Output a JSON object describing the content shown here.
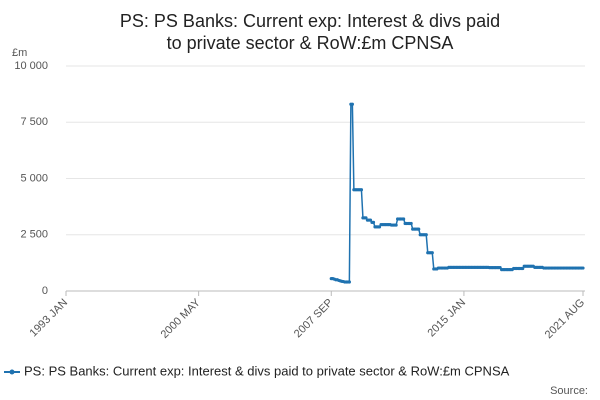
{
  "chart_data": {
    "type": "line",
    "title": "PS: PS Banks: Current exp: Interest & divs paid to private sector & RoW:£m CPNSA",
    "y_unit": "£m",
    "source": "Source:",
    "x": [
      "2007 SEP",
      "2007 OCT",
      "2007 NOV",
      "2007 DEC",
      "2008 JAN",
      "2008 FEB",
      "2008 MAR",
      "2008 APR",
      "2008 MAY",
      "2008 JUN",
      "2008 JUL",
      "2008 AUG",
      "2008 SEP",
      "2008 OCT",
      "2008 NOV",
      "2008 DEC",
      "2009 JAN",
      "2009 FEB",
      "2009 MAR",
      "2009 APR",
      "2009 MAY",
      "2009 JUN",
      "2009 JUL",
      "2009 AUG",
      "2009 SEP",
      "2009 OCT",
      "2009 NOV",
      "2009 DEC",
      "2010 JAN",
      "2010 FEB",
      "2010 MAR",
      "2010 APR",
      "2010 MAY",
      "2010 JUN",
      "2010 JUL",
      "2010 AUG",
      "2010 SEP",
      "2010 OCT",
      "2010 NOV",
      "2010 DEC",
      "2011 JAN",
      "2011 FEB",
      "2011 MAR",
      "2011 APR",
      "2011 MAY",
      "2011 JUN",
      "2011 JUL",
      "2011 AUG",
      "2011 SEP",
      "2011 OCT",
      "2011 NOV",
      "2011 DEC",
      "2012 JAN",
      "2012 FEB",
      "2012 MAR",
      "2012 APR",
      "2012 MAY",
      "2012 JUN",
      "2012 JUL",
      "2012 AUG",
      "2012 SEP",
      "2012 OCT",
      "2012 NOV",
      "2012 DEC",
      "2013 JAN",
      "2013 FEB",
      "2013 MAR",
      "2013 APR",
      "2013 MAY",
      "2013 JUN",
      "2013 JUL",
      "2013 AUG",
      "2013 SEP",
      "2013 OCT",
      "2013 NOV",
      "2013 DEC",
      "2014 JAN",
      "2014 FEB",
      "2014 MAR",
      "2014 APR",
      "2014 MAY",
      "2014 JUN",
      "2014 JUL",
      "2014 AUG",
      "2014 SEP",
      "2014 OCT",
      "2014 NOV",
      "2014 DEC",
      "2015 JAN",
      "2015 FEB",
      "2015 MAR",
      "2015 APR",
      "2015 MAY",
      "2015 JUN",
      "2015 JUL",
      "2015 AUG",
      "2015 SEP",
      "2015 OCT",
      "2015 NOV",
      "2015 DEC",
      "2016 JAN",
      "2016 FEB",
      "2016 MAR",
      "2016 APR",
      "2016 MAY",
      "2016 JUN",
      "2016 JUL",
      "2016 AUG",
      "2016 SEP",
      "2016 OCT",
      "2016 NOV",
      "2016 DEC",
      "2017 JAN",
      "2017 FEB",
      "2017 MAR",
      "2017 APR",
      "2017 MAY",
      "2017 JUN",
      "2017 JUL",
      "2017 AUG",
      "2017 SEP",
      "2017 OCT",
      "2017 NOV",
      "2017 DEC",
      "2018 JAN",
      "2018 FEB",
      "2018 MAR",
      "2018 APR",
      "2018 MAY",
      "2018 JUN",
      "2018 JUL",
      "2018 AUG",
      "2018 SEP",
      "2018 OCT",
      "2018 NOV",
      "2018 DEC",
      "2019 JAN",
      "2019 FEB",
      "2019 MAR",
      "2019 APR",
      "2019 MAY",
      "2019 JUN",
      "2019 JUL",
      "2019 AUG",
      "2019 SEP",
      "2019 OCT",
      "2019 NOV",
      "2019 DEC",
      "2020 JAN",
      "2020 FEB",
      "2020 MAR",
      "2020 APR",
      "2020 MAY",
      "2020 JUN",
      "2020 JUL",
      "2020 AUG",
      "2020 SEP",
      "2020 OCT",
      "2020 NOV",
      "2020 DEC",
      "2021 JAN",
      "2021 FEB",
      "2021 MAR",
      "2021 APR",
      "2021 MAY",
      "2021 JUN",
      "2021 JUL",
      "2021 AUG"
    ],
    "series": [
      {
        "name": "PS: PS Banks: Current exp: Interest & divs paid to private sector & RoW:£m CPNSA",
        "color": "#1f72b0",
        "values": [
          550,
          550,
          530,
          500,
          500,
          470,
          450,
          430,
          420,
          400,
          400,
          400,
          400,
          8300,
          8300,
          4500,
          4500,
          4500,
          4500,
          4500,
          4500,
          3250,
          3250,
          3250,
          3150,
          3150,
          3150,
          3050,
          3050,
          2850,
          2850,
          2850,
          2850,
          2950,
          2950,
          2950,
          2950,
          2950,
          2950,
          2950,
          2930,
          2930,
          2930,
          2930,
          3200,
          3200,
          3200,
          3200,
          3200,
          3000,
          3000,
          3000,
          3000,
          3000,
          2750,
          2750,
          2750,
          2750,
          2750,
          2500,
          2500,
          2500,
          2500,
          2500,
          1700,
          1700,
          1700,
          1700,
          980,
          980,
          980,
          1020,
          1020,
          1020,
          1020,
          1020,
          1020,
          1020,
          1050,
          1050,
          1050,
          1050,
          1050,
          1050,
          1050,
          1050,
          1050,
          1050,
          1050,
          1050,
          1050,
          1050,
          1050,
          1050,
          1050,
          1050,
          1050,
          1050,
          1050,
          1050,
          1050,
          1050,
          1050,
          1050,
          1050,
          1040,
          1040,
          1040,
          1040,
          1040,
          1040,
          1040,
          1040,
          950,
          950,
          950,
          950,
          950,
          950,
          950,
          950,
          1000,
          1000,
          1000,
          1000,
          1000,
          1000,
          1000,
          1100,
          1100,
          1100,
          1100,
          1100,
          1100,
          1100,
          1050,
          1050,
          1050,
          1050,
          1050,
          1050,
          1020,
          1020,
          1020,
          1020,
          1020,
          1020,
          1020,
          1020,
          1020,
          1020,
          1020,
          1020,
          1020,
          1020,
          1020,
          1020,
          1020,
          1020,
          1020,
          1020,
          1020,
          1020,
          1020,
          1020,
          1020,
          1020,
          1020
        ]
      }
    ],
    "xlim": [
      "1993 JAN",
      "2021 AUG"
    ],
    "xticks": [
      "1993 JAN",
      "2000 MAY",
      "2007 SEP",
      "2015 JAN",
      "2021 AUG"
    ],
    "ylim": [
      0,
      10000
    ],
    "yticks": [
      0,
      {
        "value": 2500,
        "label": "2 500"
      },
      {
        "value": 5000,
        "label": "5 000"
      },
      {
        "value": 7500,
        "label": "7 500"
      },
      {
        "value": 10000,
        "label": "10 000"
      }
    ],
    "grid": true
  }
}
